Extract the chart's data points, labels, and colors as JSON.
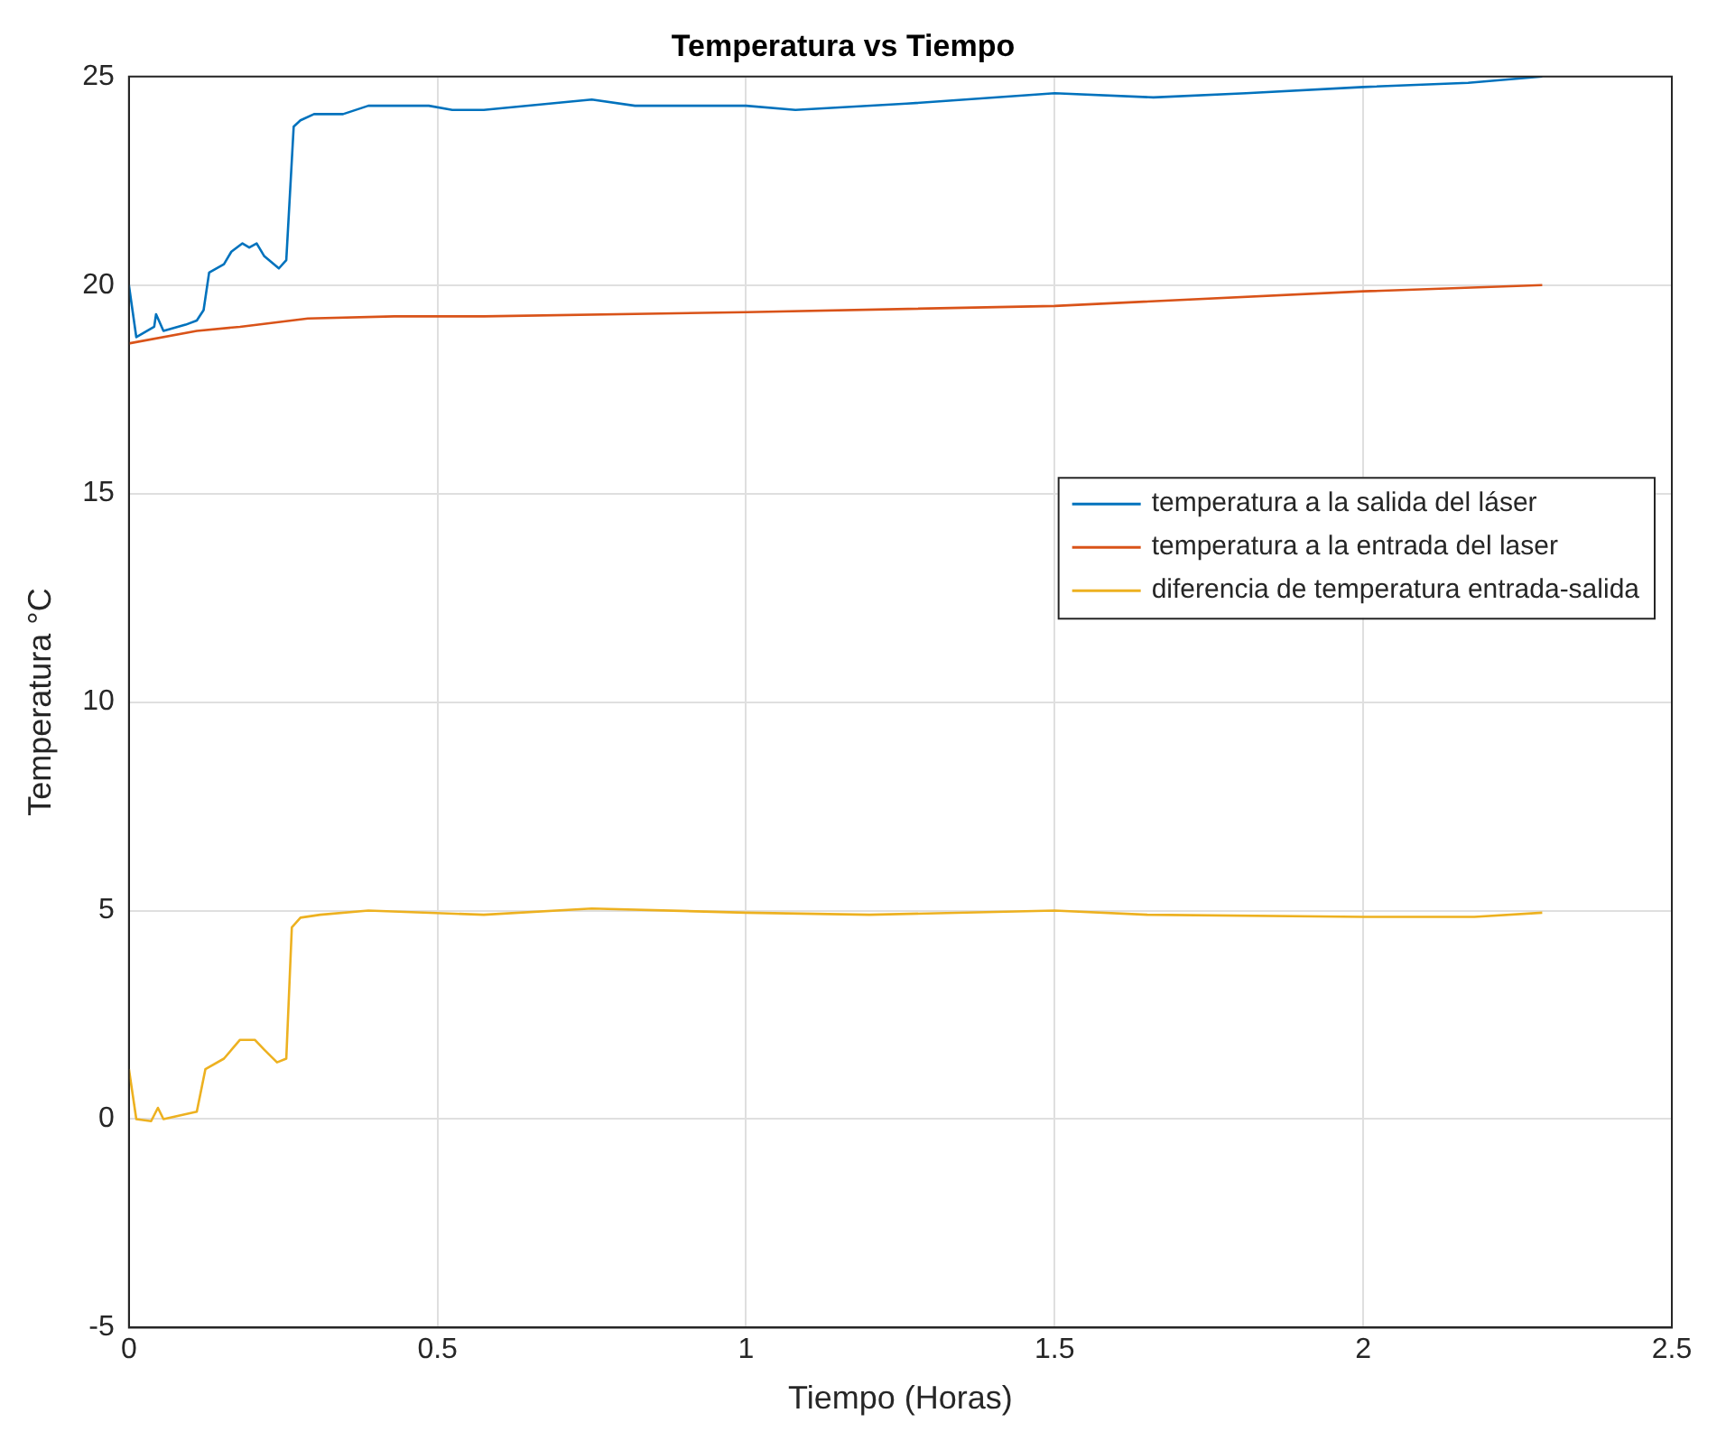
{
  "chart_data": {
    "type": "line",
    "title": "Temperatura vs Tiempo",
    "xlabel": "Tiempo (Horas)",
    "ylabel": "Temperatura °C",
    "xlim": [
      0,
      2.5
    ],
    "xticks": [
      0,
      0.5,
      1,
      1.5,
      2,
      2.5
    ],
    "ylim": [
      -5,
      25
    ],
    "yticks": [
      -5,
      0,
      5,
      10,
      15,
      20,
      25
    ],
    "grid": true,
    "legend": "right",
    "marker": "none",
    "line_style": "solid",
    "series": [
      {
        "name": "temperatura a la salida del láser",
        "color": "#0072bd",
        "x": [
          0,
          0.012,
          0.041,
          0.044,
          0.056,
          0.092,
          0.11,
          0.121,
          0.13,
          0.154,
          0.166,
          0.184,
          0.195,
          0.207,
          0.219,
          0.243,
          0.255,
          0.267,
          0.278,
          0.3,
          0.347,
          0.388,
          0.486,
          0.524,
          0.575,
          0.75,
          0.82,
          1.0,
          1.08,
          1.26,
          1.5,
          1.66,
          1.81,
          2.0,
          2.17,
          2.29
        ],
        "values": [
          20.0,
          18.75,
          19.0,
          19.3,
          18.9,
          19.05,
          19.15,
          19.4,
          20.3,
          20.5,
          20.8,
          21.0,
          20.9,
          21.0,
          20.7,
          20.4,
          20.6,
          23.8,
          23.95,
          24.1,
          24.1,
          24.3,
          24.3,
          24.2,
          24.2,
          24.45,
          24.3,
          24.3,
          24.2,
          24.35,
          24.6,
          24.5,
          24.6,
          24.75,
          24.85,
          25.0
        ]
      },
      {
        "name": "temperatura a la entrada del laser",
        "color": "#d95319",
        "x": [
          0,
          0.11,
          0.18,
          0.29,
          0.43,
          0.575,
          1.0,
          1.5,
          2.0,
          2.29
        ],
        "values": [
          18.6,
          18.9,
          19.0,
          19.2,
          19.25,
          19.25,
          19.35,
          19.5,
          19.85,
          20.0
        ]
      },
      {
        "name": "diferencia de temperatura entrada-salida",
        "color": "#edb120",
        "x": [
          0,
          0.012,
          0.036,
          0.047,
          0.056,
          0.11,
          0.124,
          0.154,
          0.18,
          0.204,
          0.219,
          0.24,
          0.255,
          0.264,
          0.278,
          0.31,
          0.388,
          0.575,
          0.75,
          1.0,
          1.2,
          1.5,
          1.65,
          2.0,
          2.18,
          2.29
        ],
        "values": [
          1.2,
          0.0,
          -0.05,
          0.27,
          0.0,
          0.18,
          1.2,
          1.45,
          1.9,
          1.9,
          1.67,
          1.36,
          1.45,
          4.6,
          4.83,
          4.9,
          5.0,
          4.9,
          5.05,
          4.95,
          4.9,
          5.0,
          4.9,
          4.85,
          4.85,
          4.95
        ]
      }
    ]
  }
}
